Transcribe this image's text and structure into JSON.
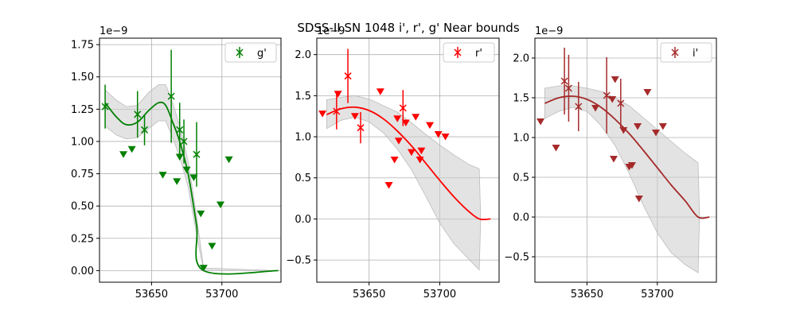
{
  "chart_data": {
    "title": "SDSS-II SN 1048  i', r', g' Near bounds",
    "panels": [
      {
        "name": "g'",
        "type": "scatter",
        "color": "#008000",
        "exponent_label": "1e−9",
        "xlim": [
          53613,
          53742
        ],
        "ylim": [
          -0.09,
          1.8
        ],
        "xticks": [
          53650,
          53700
        ],
        "xtick_labels": [
          "53650",
          "53700"
        ],
        "yticks": [
          0.0,
          0.25,
          0.5,
          0.75,
          1.0,
          1.25,
          1.5,
          1.75
        ],
        "ytick_labels": [
          "0.00",
          "0.25",
          "0.50",
          "0.75",
          "1.00",
          "1.25",
          "1.50",
          "1.75"
        ],
        "legend_label": "g'",
        "legend_position": "top-right",
        "grid": true,
        "detections": [
          {
            "x": 53617,
            "y": 1.27,
            "err": 0.17
          },
          {
            "x": 53640,
            "y": 1.21,
            "err": 0.18
          },
          {
            "x": 53645,
            "y": 1.09,
            "err": 0.12
          },
          {
            "x": 53664,
            "y": 1.35,
            "err": 0.36
          },
          {
            "x": 53670,
            "y": 1.09,
            "err": 0.21
          },
          {
            "x": 53673,
            "y": 1.0,
            "err": 0.17
          },
          {
            "x": 53682,
            "y": 0.9,
            "err": 0.25
          }
        ],
        "upper_limits": [
          {
            "x": 53630,
            "y": 0.9
          },
          {
            "x": 53636,
            "y": 0.94
          },
          {
            "x": 53658,
            "y": 0.74
          },
          {
            "x": 53668,
            "y": 0.69
          },
          {
            "x": 53670,
            "y": 0.88
          },
          {
            "x": 53675,
            "y": 0.78
          },
          {
            "x": 53680,
            "y": 0.72
          },
          {
            "x": 53685,
            "y": 0.44
          },
          {
            "x": 53687,
            "y": 0.02
          },
          {
            "x": 53693,
            "y": 0.19
          },
          {
            "x": 53699,
            "y": 0.51
          },
          {
            "x": 53705,
            "y": 0.86
          }
        ],
        "model_curve": [
          {
            "x": 53617,
            "y": 1.3
          },
          {
            "x": 53625,
            "y": 1.19
          },
          {
            "x": 53632,
            "y": 1.13
          },
          {
            "x": 53640,
            "y": 1.15
          },
          {
            "x": 53648,
            "y": 1.24
          },
          {
            "x": 53655,
            "y": 1.3
          },
          {
            "x": 53660,
            "y": 1.28
          },
          {
            "x": 53665,
            "y": 1.15
          },
          {
            "x": 53670,
            "y": 1.0
          },
          {
            "x": 53676,
            "y": 0.75
          },
          {
            "x": 53682,
            "y": 0.35
          },
          {
            "x": 53687,
            "y": 0.0
          },
          {
            "x": 53740,
            "y": 0.0
          }
        ],
        "model_band": [
          {
            "x": 53617,
            "lo": 1.12,
            "hi": 1.4
          },
          {
            "x": 53625,
            "lo": 1.05,
            "hi": 1.32
          },
          {
            "x": 53632,
            "lo": 1.02,
            "hi": 1.27
          },
          {
            "x": 53640,
            "lo": 1.03,
            "hi": 1.28
          },
          {
            "x": 53648,
            "lo": 1.1,
            "hi": 1.38
          },
          {
            "x": 53655,
            "lo": 1.16,
            "hi": 1.44
          },
          {
            "x": 53660,
            "lo": 1.16,
            "hi": 1.44
          },
          {
            "x": 53665,
            "lo": 1.03,
            "hi": 1.3
          },
          {
            "x": 53670,
            "lo": 0.88,
            "hi": 1.12
          },
          {
            "x": 53676,
            "lo": 0.65,
            "hi": 0.85
          },
          {
            "x": 53682,
            "lo": 0.28,
            "hi": 0.42
          },
          {
            "x": 53687,
            "lo": 0.0,
            "hi": 0.02
          },
          {
            "x": 53740,
            "lo": 0.0,
            "hi": 0.0
          }
        ]
      },
      {
        "name": "r'",
        "type": "scatter",
        "color": "#ff0000",
        "exponent_label": "1e−9",
        "xlim": [
          53613,
          53742
        ],
        "ylim": [
          -0.77,
          2.2
        ],
        "xticks": [
          53650,
          53700
        ],
        "xtick_labels": [
          "53650",
          "53700"
        ],
        "yticks": [
          -0.5,
          0.0,
          0.5,
          1.0,
          1.5,
          2.0
        ],
        "ytick_labels": [
          "−0.5",
          "0.0",
          "0.5",
          "1.0",
          "1.5",
          "2.0"
        ],
        "legend_label": "r'",
        "legend_position": "top-right",
        "grid": true,
        "detections": [
          {
            "x": 53627,
            "y": 1.31,
            "err": 0.22
          },
          {
            "x": 53635,
            "y": 1.74,
            "err": 0.33
          },
          {
            "x": 53644,
            "y": 1.11,
            "err": 0.19
          },
          {
            "x": 53674,
            "y": 1.35,
            "err": 0.22
          }
        ],
        "upper_limits": [
          {
            "x": 53617,
            "y": 1.28
          },
          {
            "x": 53628,
            "y": 1.52
          },
          {
            "x": 53640,
            "y": 1.25
          },
          {
            "x": 53658,
            "y": 1.55
          },
          {
            "x": 53664,
            "y": 0.41
          },
          {
            "x": 53668,
            "y": 0.72
          },
          {
            "x": 53670,
            "y": 1.22
          },
          {
            "x": 53671,
            "y": 0.95
          },
          {
            "x": 53676,
            "y": 1.17
          },
          {
            "x": 53680,
            "y": 0.81
          },
          {
            "x": 53683,
            "y": 1.24
          },
          {
            "x": 53686,
            "y": 0.72
          },
          {
            "x": 53687,
            "y": 0.83
          },
          {
            "x": 53693,
            "y": 1.14
          },
          {
            "x": 53699,
            "y": 1.03
          },
          {
            "x": 53704,
            "y": 1.0
          }
        ],
        "model_curve": [
          {
            "x": 53620,
            "y": 1.27
          },
          {
            "x": 53630,
            "y": 1.34
          },
          {
            "x": 53640,
            "y": 1.36
          },
          {
            "x": 53650,
            "y": 1.32
          },
          {
            "x": 53660,
            "y": 1.22
          },
          {
            "x": 53670,
            "y": 1.07
          },
          {
            "x": 53680,
            "y": 0.89
          },
          {
            "x": 53690,
            "y": 0.68
          },
          {
            "x": 53700,
            "y": 0.47
          },
          {
            "x": 53710,
            "y": 0.27
          },
          {
            "x": 53720,
            "y": 0.1
          },
          {
            "x": 53728,
            "y": 0.0
          },
          {
            "x": 53736,
            "y": 0.0
          }
        ],
        "model_band": [
          {
            "x": 53620,
            "lo": 1.1,
            "hi": 1.45
          },
          {
            "x": 53630,
            "lo": 1.2,
            "hi": 1.48
          },
          {
            "x": 53640,
            "lo": 1.24,
            "hi": 1.5
          },
          {
            "x": 53650,
            "lo": 1.18,
            "hi": 1.46
          },
          {
            "x": 53660,
            "lo": 1.05,
            "hi": 1.38
          },
          {
            "x": 53670,
            "lo": 0.85,
            "hi": 1.3
          },
          {
            "x": 53680,
            "lo": 0.6,
            "hi": 1.17
          },
          {
            "x": 53690,
            "lo": 0.28,
            "hi": 1.03
          },
          {
            "x": 53700,
            "lo": -0.05,
            "hi": 0.9
          },
          {
            "x": 53710,
            "lo": -0.3,
            "hi": 0.78
          },
          {
            "x": 53720,
            "lo": -0.48,
            "hi": 0.67
          },
          {
            "x": 53728,
            "lo": -0.62,
            "hi": 0.61
          },
          {
            "x": 53729,
            "lo": 0.0,
            "hi": 0.0
          }
        ]
      },
      {
        "name": "i'",
        "type": "scatter",
        "color": "#a52a2a",
        "exponent_label": "1e−9",
        "xlim": [
          53613,
          53742
        ],
        "ylim": [
          -0.82,
          2.25
        ],
        "xticks": [
          53650,
          53700
        ],
        "xtick_labels": [
          "53650",
          "53700"
        ],
        "yticks": [
          -0.5,
          0.0,
          0.5,
          1.0,
          1.5,
          2.0
        ],
        "ytick_labels": [
          "−0.5",
          "0.0",
          "0.5",
          "1.0",
          "1.5",
          "2.0"
        ],
        "legend_label": "i'",
        "legend_position": "top-right",
        "grid": true,
        "detections": [
          {
            "x": 53634,
            "y": 1.71,
            "err": 0.42
          },
          {
            "x": 53637,
            "y": 1.62,
            "err": 0.42
          },
          {
            "x": 53644,
            "y": 1.39,
            "err": 0.31
          },
          {
            "x": 53664,
            "y": 1.53,
            "err": 0.48
          },
          {
            "x": 53674,
            "y": 1.43,
            "err": 0.31
          }
        ],
        "upper_limits": [
          {
            "x": 53617,
            "y": 1.2
          },
          {
            "x": 53628,
            "y": 0.87
          },
          {
            "x": 53656,
            "y": 1.37
          },
          {
            "x": 53668,
            "y": 1.48
          },
          {
            "x": 53669,
            "y": 0.73
          },
          {
            "x": 53670,
            "y": 1.73
          },
          {
            "x": 53676,
            "y": 1.09
          },
          {
            "x": 53680,
            "y": 0.63
          },
          {
            "x": 53682,
            "y": 0.65
          },
          {
            "x": 53686,
            "y": 1.14
          },
          {
            "x": 53687,
            "y": 0.23
          },
          {
            "x": 53693,
            "y": 1.57
          },
          {
            "x": 53699,
            "y": 1.06
          },
          {
            "x": 53704,
            "y": 1.14
          }
        ],
        "model_curve": [
          {
            "x": 53620,
            "y": 1.43
          },
          {
            "x": 53630,
            "y": 1.5
          },
          {
            "x": 53640,
            "y": 1.52
          },
          {
            "x": 53650,
            "y": 1.48
          },
          {
            "x": 53660,
            "y": 1.38
          },
          {
            "x": 53670,
            "y": 1.23
          },
          {
            "x": 53680,
            "y": 1.05
          },
          {
            "x": 53690,
            "y": 0.84
          },
          {
            "x": 53700,
            "y": 0.62
          },
          {
            "x": 53710,
            "y": 0.4
          },
          {
            "x": 53720,
            "y": 0.2
          },
          {
            "x": 53729,
            "y": 0.0
          },
          {
            "x": 53737,
            "y": 0.0
          }
        ],
        "model_band": [
          {
            "x": 53620,
            "lo": 1.24,
            "hi": 1.62
          },
          {
            "x": 53630,
            "lo": 1.33,
            "hi": 1.65
          },
          {
            "x": 53640,
            "lo": 1.38,
            "hi": 1.65
          },
          {
            "x": 53650,
            "lo": 1.33,
            "hi": 1.62
          },
          {
            "x": 53660,
            "lo": 1.15,
            "hi": 1.58
          },
          {
            "x": 53670,
            "lo": 0.9,
            "hi": 1.5
          },
          {
            "x": 53680,
            "lo": 0.55,
            "hi": 1.4
          },
          {
            "x": 53690,
            "lo": 0.15,
            "hi": 1.25
          },
          {
            "x": 53700,
            "lo": -0.2,
            "hi": 1.1
          },
          {
            "x": 53710,
            "lo": -0.45,
            "hi": 0.95
          },
          {
            "x": 53720,
            "lo": -0.6,
            "hi": 0.8
          },
          {
            "x": 53729,
            "lo": -0.7,
            "hi": 0.68
          },
          {
            "x": 53730,
            "lo": 0.0,
            "hi": 0.0
          }
        ]
      }
    ]
  }
}
